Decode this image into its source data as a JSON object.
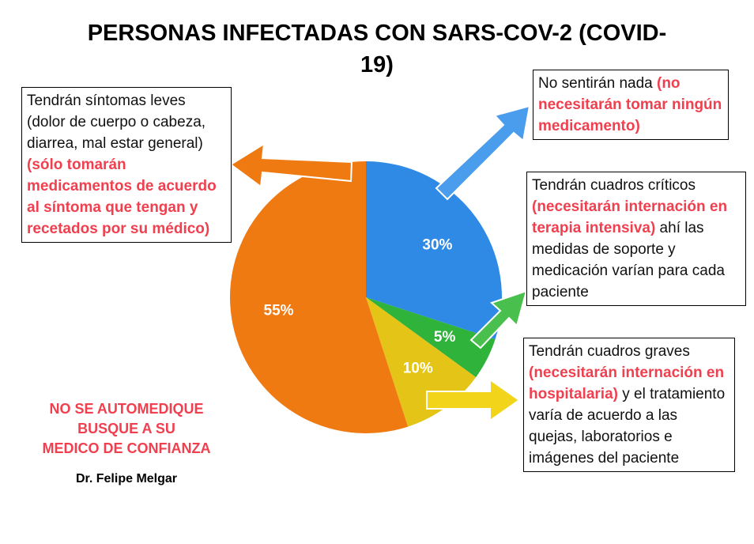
{
  "chart_data": {
    "type": "pie",
    "title": "PERSONAS INFECTADAS CON SARS-COV-2 (COVID-19)",
    "values": [
      30,
      5,
      10,
      55
    ],
    "value_labels": [
      "30%",
      "5%",
      "10%",
      "55%"
    ],
    "colors": [
      "#2f8ae6",
      "#2fb33a",
      "#e3c417",
      "#f07a12"
    ],
    "callouts": [
      {
        "parts": [
          {
            "text": "No sentirán nada "
          },
          {
            "text": "(no necesitarán tomar ningún medicamento)",
            "color": "#f0404f"
          }
        ]
      },
      {
        "parts": [
          {
            "text": "Tendrán cuadros críticos "
          },
          {
            "text": "(necesitarán internación en terapia intensiva)",
            "color": "#f0404f"
          },
          {
            "text": " ahí las medidas de soporte y medicación varían para cada paciente"
          }
        ]
      },
      {
        "parts": [
          {
            "text": "Tendrán cuadros graves "
          },
          {
            "text": "(necesitarán internación en hospitalaria)",
            "color": "#f0404f"
          },
          {
            "text": " y el tratamiento varía de acuerdo a las quejas, laboratorios e imágenes del paciente"
          }
        ]
      },
      {
        "parts": [
          {
            "text": "Tendrán síntomas leves (dolor de cuerpo o cabeza, diarrea, mal estar general) "
          },
          {
            "text": "(sólo tomarán medicamentos de acuerdo al síntoma que tengan y recetados por su médico)",
            "color": "#f0404f"
          }
        ]
      }
    ],
    "note": [
      "NO SE AUTOMEDIQUE",
      "BUSQUE A SU",
      "MEDICO DE CONFIANZA"
    ],
    "note_color": "#f0404f",
    "author": "Dr. Felipe Melgar"
  }
}
